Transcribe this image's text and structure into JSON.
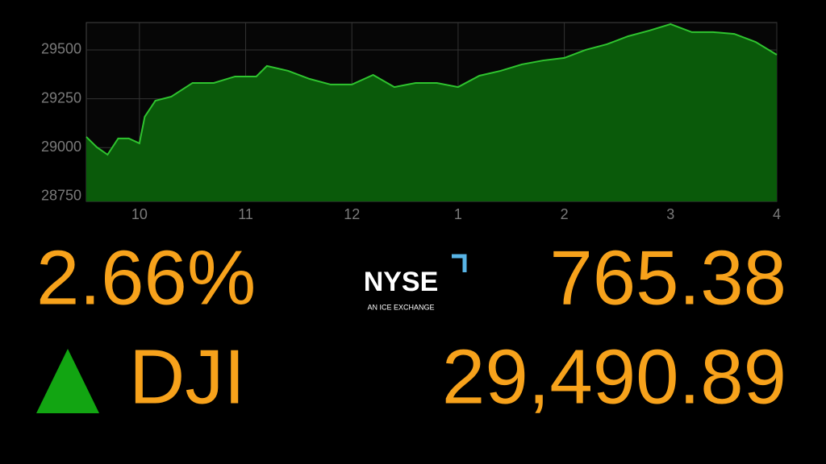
{
  "chart_data": {
    "type": "area",
    "x": [
      9.5,
      9.6,
      9.7,
      9.8,
      9.9,
      10.0,
      10.05,
      10.15,
      10.3,
      10.5,
      10.7,
      10.9,
      11.1,
      11.2,
      11.4,
      11.6,
      11.8,
      12.0,
      12.2,
      12.4,
      12.6,
      12.8,
      13.0,
      13.2,
      13.4,
      13.6,
      13.8,
      14.0,
      14.2,
      14.4,
      14.6,
      14.8,
      15.0,
      15.2,
      15.4,
      15.6,
      15.8,
      16.0
    ],
    "values": [
      29055,
      29002,
      28964,
      29047,
      29047,
      29022,
      29158,
      29240,
      29261,
      29331,
      29331,
      29364,
      29364,
      29418,
      29393,
      29352,
      29323,
      29323,
      29372,
      29310,
      29331,
      29331,
      29310,
      29368,
      29393,
      29426,
      29446,
      29459,
      29500,
      29529,
      29570,
      29599,
      29632,
      29591,
      29591,
      29582,
      29541,
      29475
    ],
    "color": "#2fc42f",
    "fill": "#0a5a0a",
    "xlim": [
      9.5,
      16.0
    ],
    "xticks": [
      10,
      11,
      12,
      {
        "value": 13,
        "label": "1"
      },
      {
        "value": 14,
        "label": "2"
      },
      {
        "value": 15,
        "label": "3"
      },
      {
        "value": 16,
        "label": "4"
      }
    ],
    "ylim": [
      28725,
      29640
    ],
    "yticks": [
      28750,
      29000,
      29250,
      29500
    ],
    "grid": true
  },
  "ticker": {
    "change_percent": "2.66%",
    "symbol": "DJI",
    "change_points": "765.38",
    "level": "29,490.89"
  },
  "logo": {
    "name": "NYSE",
    "tagline": "AN ICE EXCHANGE"
  }
}
